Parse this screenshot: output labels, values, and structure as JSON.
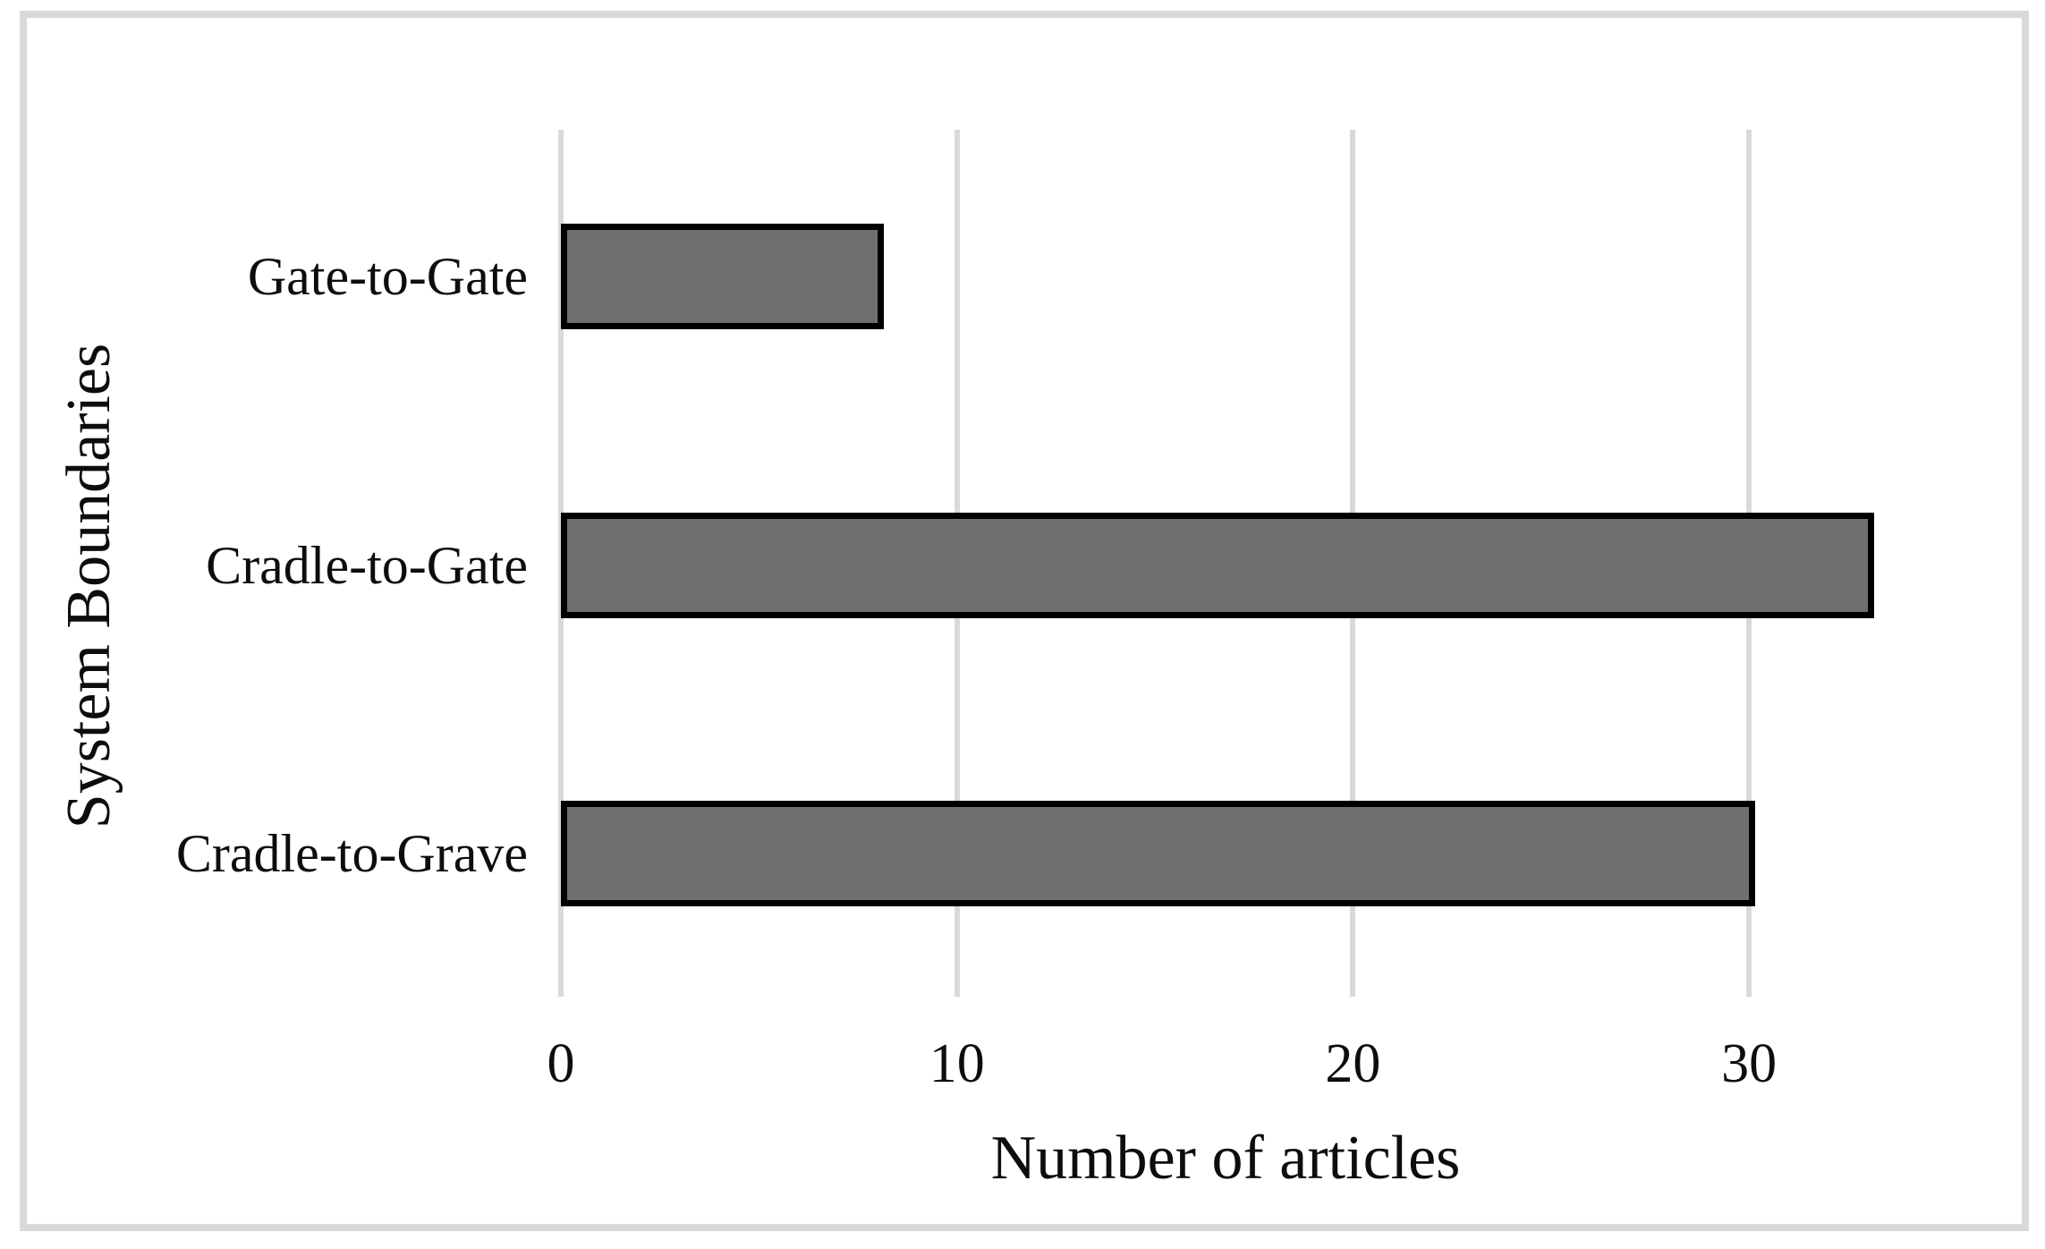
{
  "chart_data": {
    "type": "bar",
    "orientation": "horizontal",
    "title": "",
    "categories": [
      "Gate-to-Gate",
      "Cradle-to-Gate",
      "Cradle-to-Grave"
    ],
    "values": [
      8,
      33,
      30
    ],
    "xlabel": "Number of articles",
    "ylabel": "System Boundaries",
    "xticks": [
      "0",
      "10",
      "20",
      "30"
    ],
    "xtick_values": [
      0,
      10,
      20,
      30
    ],
    "xlim": [
      0,
      35
    ],
    "grid": "vertical-gridlines-on",
    "legend": "none",
    "colors": {
      "bar_fill": "#706F6E",
      "bar_border": "#000000",
      "gridline": "#D9D9D9",
      "frame_border": "#D9D9D9",
      "text": "#0D0D0D",
      "background": "#FFFFFF"
    }
  }
}
